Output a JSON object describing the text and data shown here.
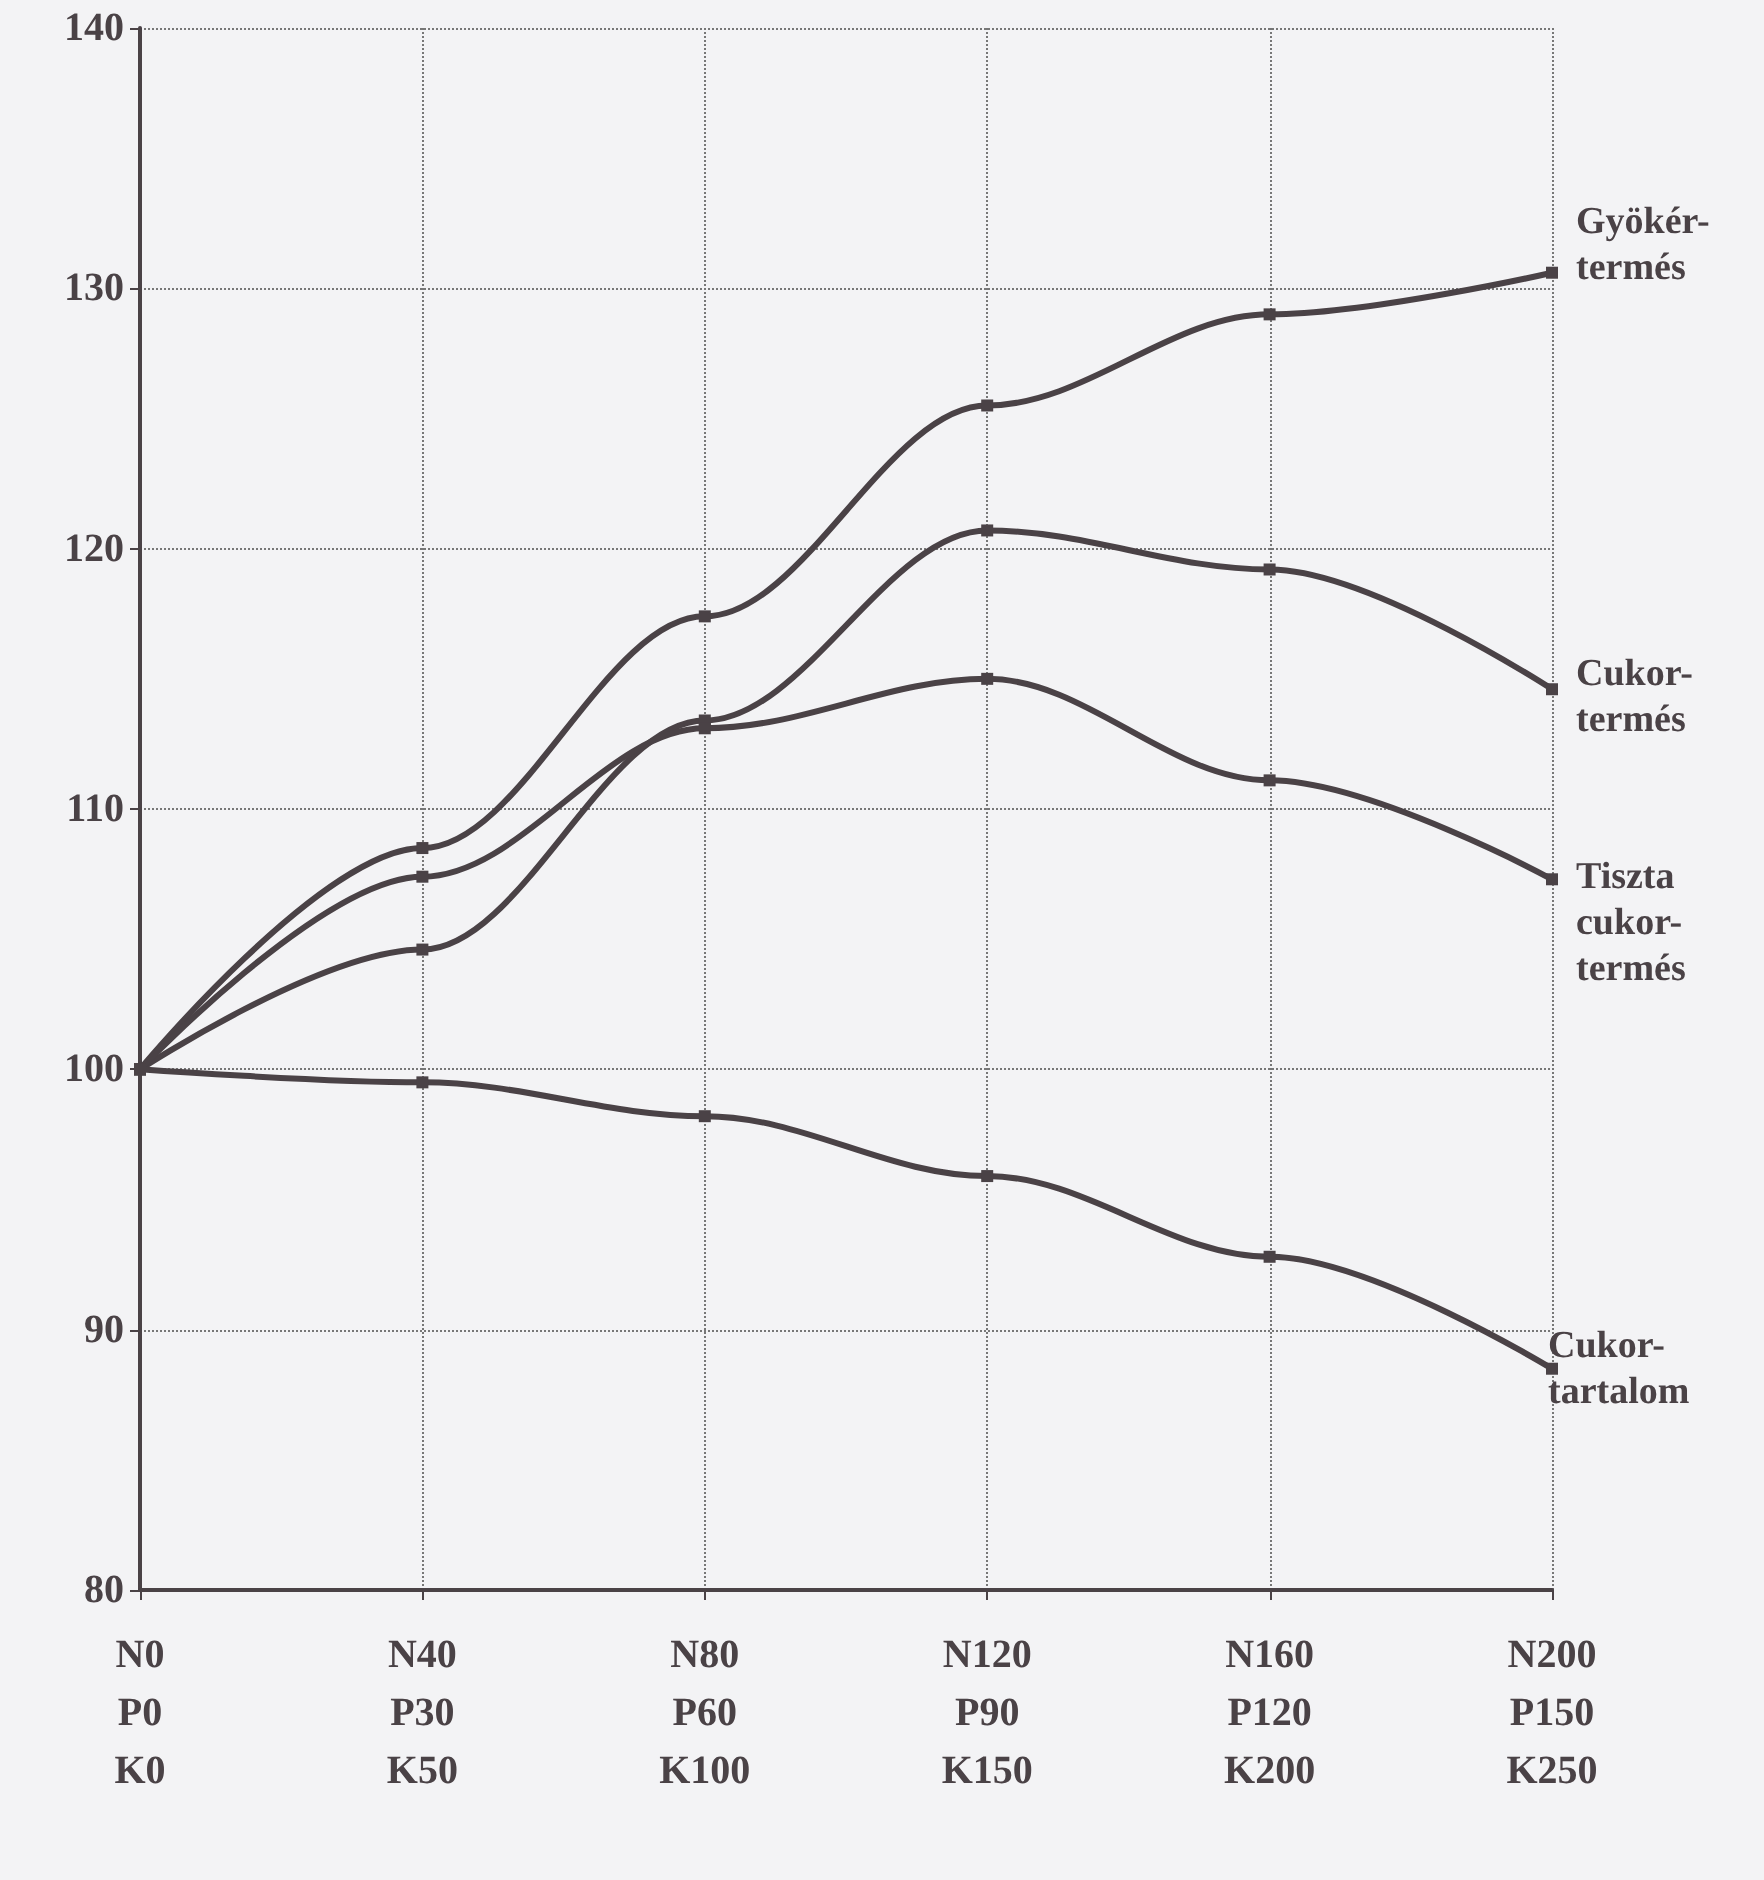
{
  "chart_data": {
    "type": "line",
    "categories": [
      "N0\nP0\nK0",
      "N40\nP30\nK50",
      "N80\nP60\nK100",
      "N120\nP90\nK150",
      "N160\nP120\nK200",
      "N200\nP150\nK250"
    ],
    "series": [
      {
        "name": "Gyökér-\ntermés",
        "color": "#4a4246",
        "values": [
          100,
          108.5,
          117.4,
          125.5,
          129.0,
          130.6
        ]
      },
      {
        "name": "Cukor-\ntermés",
        "color": "#4a4246",
        "values": [
          100,
          104.6,
          113.4,
          120.7,
          119.2,
          114.6
        ]
      },
      {
        "name": "Tiszta\ncukor-\ntermés",
        "color": "#4a4246",
        "values": [
          100,
          107.4,
          113.1,
          115.0,
          111.1,
          107.3
        ]
      },
      {
        "name": "Cukor-\ntartalom",
        "color": "#4a4246",
        "values": [
          100,
          99.5,
          98.2,
          95.9,
          92.8,
          88.5
        ]
      }
    ],
    "ylim": [
      80,
      140
    ],
    "yticks": [
      80,
      90,
      100,
      110,
      120,
      130,
      140
    ],
    "grid": true,
    "legend": false,
    "marker": "square",
    "line_style": "solid"
  }
}
